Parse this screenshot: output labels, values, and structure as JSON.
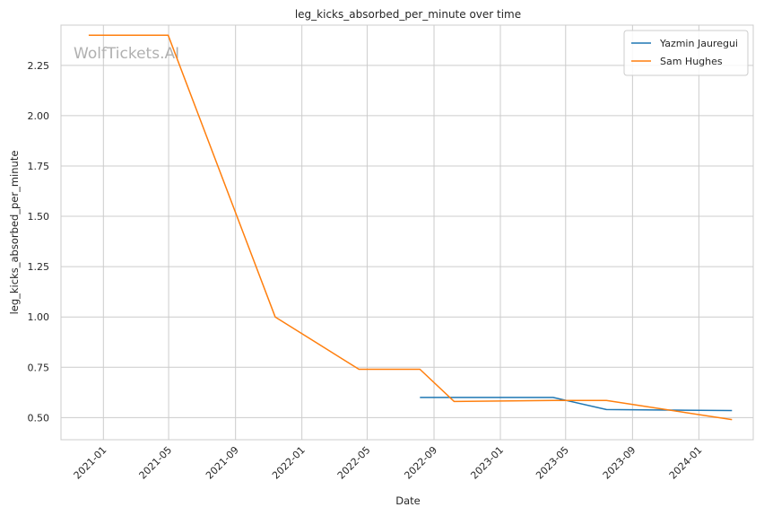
{
  "chart_data": {
    "type": "line",
    "title": "leg_kicks_absorbed_per_minute over time",
    "xlabel": "Date",
    "ylabel": "leg_kicks_absorbed_per_minute",
    "watermark": "WolfTickets.AI",
    "x_ticks": [
      "2021-01",
      "2021-05",
      "2021-09",
      "2022-01",
      "2022-05",
      "2022-09",
      "2023-01",
      "2023-05",
      "2023-09",
      "2024-01"
    ],
    "y_ticks": [
      "0.50",
      "0.75",
      "1.00",
      "1.25",
      "1.50",
      "1.75",
      "2.00",
      "2.25"
    ],
    "xlim": [
      "2020-10-15",
      "2024-04-10"
    ],
    "ylim": [
      0.39,
      2.45
    ],
    "grid": true,
    "legend_position": "top-right",
    "series": [
      {
        "name": "Yazmin Jauregui",
        "color": "#1f77b4",
        "x": [
          "2022-08-06",
          "2023-04-08",
          "2023-07-15",
          "2024-03-02"
        ],
        "y": [
          0.6,
          0.6,
          0.54,
          0.535
        ]
      },
      {
        "name": "Sam Hughes",
        "color": "#ff7f0e",
        "x": [
          "2020-12-05",
          "2021-04-30",
          "2021-11-13",
          "2022-04-16",
          "2022-08-06",
          "2022-10-08",
          "2023-04-08",
          "2023-07-15",
          "2024-03-02"
        ],
        "y": [
          2.4,
          2.4,
          1.0,
          0.74,
          0.74,
          0.58,
          0.585,
          0.585,
          0.49
        ]
      }
    ]
  }
}
